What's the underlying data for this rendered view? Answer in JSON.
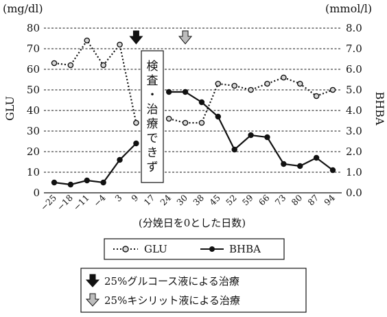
{
  "chart_data": {
    "type": "line",
    "y_left_unit": "(mg/dl)",
    "y_right_unit": "(mmol/l)",
    "y_left_label": "GLU",
    "y_right_label": "BHBA",
    "xlabel": "(分娩日を0とした日数)",
    "y_left_lim": [
      0,
      80
    ],
    "y_right_lim": [
      0,
      8
    ],
    "y_left_ticks": [
      "0",
      "10",
      "20",
      "30",
      "40",
      "50",
      "60",
      "70",
      "80"
    ],
    "y_right_ticks": [
      "0.0",
      "1.0",
      "2.0",
      "3.0",
      "4.0",
      "5.0",
      "6.0",
      "7.0",
      "8.0"
    ],
    "x_categories": [
      "−25",
      "−18",
      "−11",
      "−4",
      "3",
      "9",
      "17",
      "24",
      "30",
      "38",
      "45",
      "52",
      "59",
      "66",
      "73",
      "80",
      "87",
      "94"
    ],
    "grid": "horizontal dashed",
    "series": [
      {
        "name": "GLU",
        "axis": "left",
        "style": "dotted line, open circle markers",
        "segments": [
          [
            [
              0,
              63
            ],
            [
              1,
              62
            ],
            [
              2,
              74
            ],
            [
              3,
              62
            ],
            [
              4,
              72
            ],
            [
              5,
              34
            ]
          ],
          [
            [
              7,
              36
            ],
            [
              8,
              34
            ],
            [
              9,
              34
            ],
            [
              10,
              53
            ],
            [
              11,
              52
            ],
            [
              12,
              50
            ],
            [
              13,
              53
            ],
            [
              14,
              56
            ],
            [
              15,
              53
            ],
            [
              16,
              47
            ],
            [
              17,
              50
            ]
          ]
        ]
      },
      {
        "name": "BHBA",
        "axis": "right",
        "style": "solid line, filled circle markers",
        "segments": [
          [
            [
              0,
              0.5
            ],
            [
              1,
              0.4
            ],
            [
              2,
              0.6
            ],
            [
              3,
              0.5
            ],
            [
              4,
              1.6
            ],
            [
              5,
              2.4
            ]
          ],
          [
            [
              7,
              4.9
            ],
            [
              8,
              4.9
            ],
            [
              9,
              4.4
            ],
            [
              10,
              3.7
            ],
            [
              11,
              2.1
            ],
            [
              12,
              2.8
            ],
            [
              13,
              2.7
            ],
            [
              14,
              1.4
            ],
            [
              15,
              1.3
            ],
            [
              16,
              1.7
            ],
            [
              17,
              1.1
            ]
          ]
        ]
      }
    ],
    "note": "検査・治療できず",
    "treatments": [
      {
        "label": "25%グルコース液による治療",
        "arrow": "black",
        "x_index": 5
      },
      {
        "label": "25%キシリット液による治療",
        "arrow": "gray",
        "x_index": 8
      }
    ],
    "legend": [
      "GLU",
      "BHBA"
    ]
  }
}
